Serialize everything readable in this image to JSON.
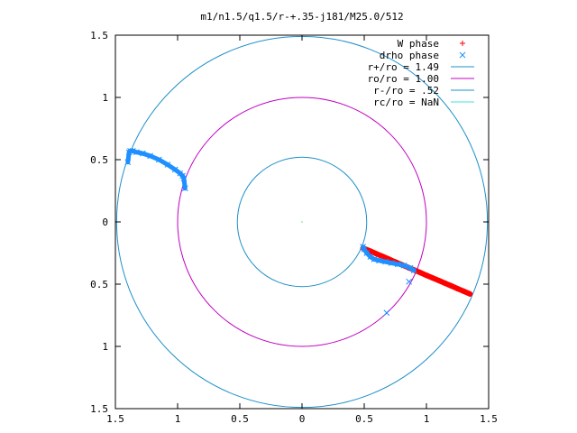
{
  "chart_data": {
    "type": "scatter",
    "title": "m1/n1.5/q1.5/r-+.35-j181/M25.0/512",
    "xlim": [
      -1.5,
      1.5
    ],
    "ylim": [
      -1.5,
      1.5
    ],
    "x_ticks": [
      -1.5,
      -1,
      -0.5,
      0,
      0.5,
      1,
      1.5
    ],
    "x_tick_labels": [
      "1.5",
      "1",
      "0.5",
      "0",
      "0.5",
      "1",
      "1.5"
    ],
    "y_ticks": [
      1.5,
      1,
      0.5,
      0,
      -0.5,
      -1,
      -1.5
    ],
    "y_tick_labels": [
      "1.5",
      "1",
      "0.5",
      "0",
      "0.5",
      "1",
      "1.5"
    ],
    "grid": false,
    "legend_position": "top-right",
    "series": [
      {
        "name": "W phase",
        "kind": "points",
        "marker": "plus",
        "color": "#ff0000",
        "x": [
          0.49,
          0.55,
          0.6,
          0.65,
          0.7,
          0.75,
          0.8,
          0.85,
          0.9,
          0.95,
          1.0,
          1.05,
          1.1,
          1.15,
          1.2,
          1.25,
          1.3,
          1.35
        ],
        "y": [
          -0.21,
          -0.235,
          -0.257,
          -0.278,
          -0.3,
          -0.322,
          -0.343,
          -0.364,
          -0.386,
          -0.407,
          -0.429,
          -0.45,
          -0.471,
          -0.493,
          -0.514,
          -0.536,
          -0.557,
          -0.579
        ]
      },
      {
        "name": "drho phase",
        "kind": "points",
        "marker": "cross",
        "color": "#1e90ff",
        "x": [
          0.49,
          0.5,
          0.52,
          0.55,
          0.58,
          0.62,
          0.67,
          0.72,
          0.77,
          0.82,
          0.87,
          0.9,
          0.68,
          0.86,
          -0.94,
          -0.95,
          -0.96,
          -0.98,
          -1.02,
          -1.08,
          -1.15,
          -1.22,
          -1.28,
          -1.33,
          -1.36,
          -1.38,
          -1.39,
          -1.4
        ],
        "y": [
          -0.2,
          -0.22,
          -0.25,
          -0.28,
          -0.3,
          -0.31,
          -0.32,
          -0.33,
          -0.34,
          -0.35,
          -0.37,
          -0.39,
          -0.73,
          -0.48,
          0.27,
          0.35,
          0.37,
          0.39,
          0.42,
          0.46,
          0.5,
          0.53,
          0.55,
          0.56,
          0.57,
          0.57,
          0.56,
          0.48
        ]
      },
      {
        "name": "r+/ro = 1.49",
        "kind": "circle",
        "radius": 1.49,
        "color": "#1e90c8"
      },
      {
        "name": "ro/ro = 1.00",
        "kind": "circle",
        "radius": 1.0,
        "color": "#c000c0"
      },
      {
        "name": "r-/ro = .52",
        "kind": "circle",
        "radius": 0.52,
        "color": "#1e90c8"
      },
      {
        "name": "rc/ro = NaN",
        "kind": "circle",
        "radius": null,
        "color": "#40e0e0"
      }
    ],
    "center_point": {
      "x": 0,
      "y": 0,
      "color": "#00aa00"
    }
  }
}
